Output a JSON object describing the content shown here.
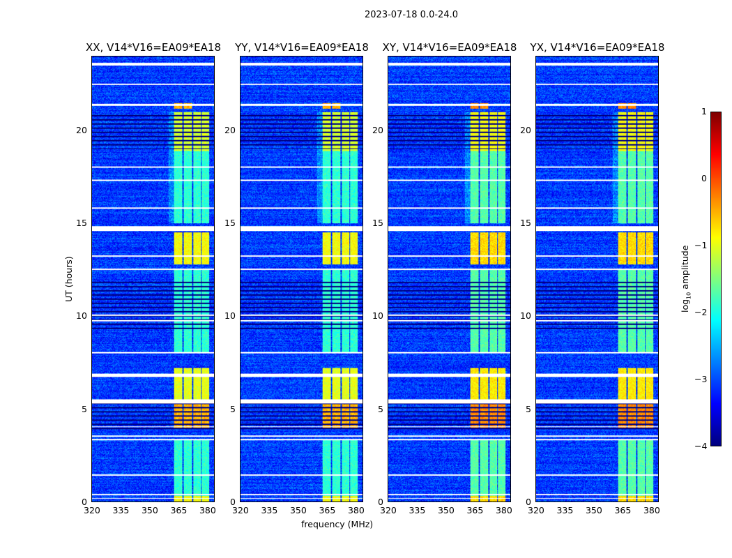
{
  "suptitle": "2023-07-18 0.0-24.0",
  "chart_data": [
    {
      "type": "heatmap",
      "title": "XX, V14*V16=EA09*EA18",
      "xlabel": "",
      "ylabel": "UT (hours)",
      "xlim": [
        320,
        384
      ],
      "ylim": [
        0,
        24
      ],
      "xticks": [
        "320",
        "335",
        "350",
        "365",
        "380"
      ],
      "yticks": [
        "0",
        "5",
        "10",
        "15",
        "20"
      ]
    },
    {
      "type": "heatmap",
      "title": "YY, V14*V16=EA09*EA18",
      "xlabel": "frequency (MHz)",
      "ylabel": "",
      "xlim": [
        320,
        384
      ],
      "ylim": [
        0,
        24
      ],
      "xticks": [
        "320",
        "335",
        "350",
        "365",
        "380"
      ],
      "yticks": [
        "0",
        "5",
        "10",
        "15",
        "20"
      ]
    },
    {
      "type": "heatmap",
      "title": "XY, V14*V16=EA09*EA18",
      "xlabel": "",
      "ylabel": "",
      "xlim": [
        320,
        384
      ],
      "ylim": [
        0,
        24
      ],
      "xticks": [
        "320",
        "335",
        "350",
        "365",
        "380"
      ],
      "yticks": [
        "0",
        "5",
        "10",
        "15",
        "20"
      ]
    },
    {
      "type": "heatmap",
      "title": "YX, V14*V16=EA09*EA18",
      "xlabel": "",
      "ylabel": "",
      "xlim": [
        320,
        384
      ],
      "ylim": [
        0,
        24
      ],
      "xticks": [
        "320",
        "335",
        "350",
        "365",
        "380"
      ],
      "yticks": [
        "0",
        "5",
        "10",
        "15",
        "20"
      ]
    }
  ],
  "colorbar": {
    "label": "log10 amplitude",
    "label_main": "log",
    "label_sub": "10",
    "label_rest": " amplitude",
    "range": [
      -4,
      1
    ],
    "ticks": [
      "1",
      "0",
      "−1",
      "−2",
      "−3",
      "−4"
    ],
    "colormap": "jet"
  },
  "features": {
    "background_level": -3.1,
    "rfi_channels_mhz": [
      [
        363,
        367.5
      ],
      [
        368,
        372.5
      ],
      [
        373,
        377
      ],
      [
        377.5,
        381.5
      ]
    ],
    "rfi_segments": [
      {
        "hours": [
          21.2,
          21.5
        ],
        "level": -0.5,
        "channels": [
          0,
          1
        ]
      },
      {
        "hours": [
          18.9,
          21.0
        ],
        "level": -1.1
      },
      {
        "hours": [
          15.0,
          18.9
        ],
        "level": -1.9
      },
      {
        "hours": [
          12.8,
          14.5
        ],
        "level": -0.9
      },
      {
        "hours": [
          8.0,
          12.5
        ],
        "level": -1.9
      },
      {
        "hours": [
          5.5,
          7.2
        ],
        "level": -1.0
      },
      {
        "hours": [
          3.9,
          5.3
        ],
        "level": -0.5
      },
      {
        "hours": [
          0.3,
          3.3
        ],
        "level": -1.9
      },
      {
        "hours": [
          0.0,
          0.3
        ],
        "level": -0.9
      }
    ],
    "flagged_hours": [
      [
        23.5,
        23.65
      ],
      [
        22.45,
        22.55
      ],
      [
        21.35,
        21.45
      ],
      [
        18.0,
        18.08
      ],
      [
        17.3,
        17.38
      ],
      [
        15.8,
        15.88
      ],
      [
        14.6,
        14.85
      ],
      [
        13.2,
        13.27
      ],
      [
        12.5,
        12.57
      ],
      [
        10.0,
        10.07
      ],
      [
        9.7,
        9.77
      ],
      [
        8.0,
        8.07
      ],
      [
        6.7,
        6.9
      ],
      [
        5.3,
        5.5
      ],
      [
        4.0,
        4.06
      ],
      [
        3.5,
        3.56
      ],
      [
        3.3,
        3.36
      ],
      [
        1.4,
        1.47
      ],
      [
        0.35,
        0.42
      ],
      [
        0.15,
        0.2
      ]
    ],
    "striped_hours": [
      [
        19.0,
        21.0
      ],
      [
        3.9,
        5.3
      ],
      [
        9.2,
        12.0
      ]
    ]
  }
}
